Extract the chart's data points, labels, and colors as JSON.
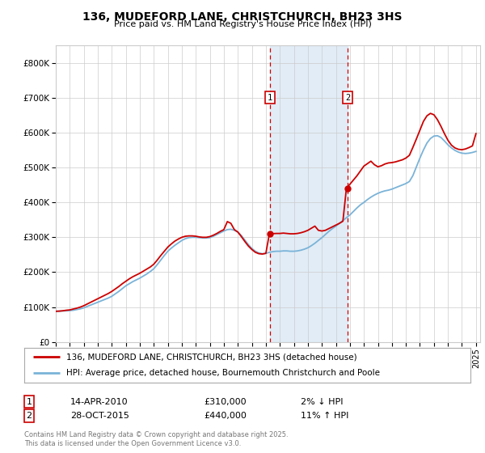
{
  "title": "136, MUDEFORD LANE, CHRISTCHURCH, BH23 3HS",
  "subtitle": "Price paid vs. HM Land Registry's House Price Index (HPI)",
  "background_color": "#ffffff",
  "plot_bg_color": "#ffffff",
  "grid_color": "#cccccc",
  "ylim": [
    0,
    850000
  ],
  "yticks": [
    0,
    100000,
    200000,
    300000,
    400000,
    500000,
    600000,
    700000,
    800000
  ],
  "ytick_labels": [
    "£0",
    "£100K",
    "£200K",
    "£300K",
    "£400K",
    "£500K",
    "£600K",
    "£700K",
    "£800K"
  ],
  "xlim_start": 1995.0,
  "xlim_end": 2025.3,
  "xticks": [
    1995,
    1996,
    1997,
    1998,
    1999,
    2000,
    2001,
    2002,
    2003,
    2004,
    2005,
    2006,
    2007,
    2008,
    2009,
    2010,
    2011,
    2012,
    2013,
    2014,
    2015,
    2016,
    2017,
    2018,
    2019,
    2020,
    2021,
    2022,
    2023,
    2024,
    2025
  ],
  "sale1_x": 2010.29,
  "sale1_y": 310000,
  "sale1_label": "1",
  "sale1_date": "14-APR-2010",
  "sale1_price": "£310,000",
  "sale1_hpi": "2% ↓ HPI",
  "sale2_x": 2015.83,
  "sale2_y": 440000,
  "sale2_label": "2",
  "sale2_date": "28-OCT-2015",
  "sale2_price": "£440,000",
  "sale2_hpi": "11% ↑ HPI",
  "shaded_x1": 2010.29,
  "shaded_x2": 2015.83,
  "hpi_line_color": "#7ab3d8",
  "price_line_color": "#cc0000",
  "legend_label1": "136, MUDEFORD LANE, CHRISTCHURCH, BH23 3HS (detached house)",
  "legend_label2": "HPI: Average price, detached house, Bournemouth Christchurch and Poole",
  "footer": "Contains HM Land Registry data © Crown copyright and database right 2025.\nThis data is licensed under the Open Government Licence v3.0.",
  "hpi_data_x": [
    1995.0,
    1995.25,
    1995.5,
    1995.75,
    1996.0,
    1996.25,
    1996.5,
    1996.75,
    1997.0,
    1997.25,
    1997.5,
    1997.75,
    1998.0,
    1998.25,
    1998.5,
    1998.75,
    1999.0,
    1999.25,
    1999.5,
    1999.75,
    2000.0,
    2000.25,
    2000.5,
    2000.75,
    2001.0,
    2001.25,
    2001.5,
    2001.75,
    2002.0,
    2002.25,
    2002.5,
    2002.75,
    2003.0,
    2003.25,
    2003.5,
    2003.75,
    2004.0,
    2004.25,
    2004.5,
    2004.75,
    2005.0,
    2005.25,
    2005.5,
    2005.75,
    2006.0,
    2006.25,
    2006.5,
    2006.75,
    2007.0,
    2007.25,
    2007.5,
    2007.75,
    2008.0,
    2008.25,
    2008.5,
    2008.75,
    2009.0,
    2009.25,
    2009.5,
    2009.75,
    2010.0,
    2010.25,
    2010.5,
    2010.75,
    2011.0,
    2011.25,
    2011.5,
    2011.75,
    2012.0,
    2012.25,
    2012.5,
    2012.75,
    2013.0,
    2013.25,
    2013.5,
    2013.75,
    2014.0,
    2014.25,
    2014.5,
    2014.75,
    2015.0,
    2015.25,
    2015.5,
    2015.75,
    2016.0,
    2016.25,
    2016.5,
    2016.75,
    2017.0,
    2017.25,
    2017.5,
    2017.75,
    2018.0,
    2018.25,
    2018.5,
    2018.75,
    2019.0,
    2019.25,
    2019.5,
    2019.75,
    2020.0,
    2020.25,
    2020.5,
    2020.75,
    2021.0,
    2021.25,
    2021.5,
    2021.75,
    2022.0,
    2022.25,
    2022.5,
    2022.75,
    2023.0,
    2023.25,
    2023.5,
    2023.75,
    2024.0,
    2024.25,
    2024.5,
    2024.75,
    2025.0
  ],
  "hpi_data_y": [
    88000,
    88500,
    89000,
    89500,
    90000,
    91000,
    93000,
    95000,
    98000,
    102000,
    106000,
    110000,
    114000,
    118000,
    122000,
    126000,
    131000,
    138000,
    145000,
    153000,
    161000,
    167000,
    173000,
    178000,
    183000,
    189000,
    195000,
    202000,
    210000,
    222000,
    235000,
    248000,
    260000,
    269000,
    277000,
    284000,
    291000,
    296000,
    299000,
    300000,
    300000,
    299000,
    298000,
    298000,
    299000,
    303000,
    308000,
    313000,
    318000,
    322000,
    323000,
    320000,
    315000,
    305000,
    292000,
    279000,
    268000,
    260000,
    255000,
    253000,
    254000,
    257000,
    259000,
    260000,
    260000,
    261000,
    261000,
    260000,
    260000,
    261000,
    263000,
    266000,
    270000,
    276000,
    283000,
    291000,
    299000,
    308000,
    317000,
    325000,
    332000,
    340000,
    348000,
    356000,
    364000,
    374000,
    384000,
    393000,
    400000,
    408000,
    415000,
    421000,
    426000,
    430000,
    433000,
    435000,
    438000,
    442000,
    446000,
    450000,
    454000,
    460000,
    477000,
    502000,
    527000,
    550000,
    570000,
    583000,
    590000,
    591000,
    586000,
    576000,
    565000,
    556000,
    549000,
    544000,
    541000,
    540000,
    541000,
    543000,
    546000
  ],
  "price_data_x": [
    1995.0,
    1995.25,
    1995.5,
    1995.75,
    1996.0,
    1996.25,
    1996.5,
    1996.75,
    1997.0,
    1997.25,
    1997.5,
    1997.75,
    1998.0,
    1998.25,
    1998.5,
    1998.75,
    1999.0,
    1999.25,
    1999.5,
    1999.75,
    2000.0,
    2000.25,
    2000.5,
    2000.75,
    2001.0,
    2001.25,
    2001.5,
    2001.75,
    2002.0,
    2002.25,
    2002.5,
    2002.75,
    2003.0,
    2003.25,
    2003.5,
    2003.75,
    2004.0,
    2004.25,
    2004.5,
    2004.75,
    2005.0,
    2005.25,
    2005.5,
    2005.75,
    2006.0,
    2006.25,
    2006.5,
    2006.75,
    2007.0,
    2007.25,
    2007.5,
    2007.75,
    2008.0,
    2008.25,
    2008.5,
    2008.75,
    2009.0,
    2009.25,
    2009.5,
    2009.75,
    2010.0,
    2010.25,
    2010.75,
    2011.0,
    2011.25,
    2011.5,
    2011.75,
    2012.0,
    2012.25,
    2012.5,
    2012.75,
    2013.0,
    2013.25,
    2013.5,
    2013.75,
    2014.0,
    2014.25,
    2014.5,
    2014.75,
    2015.0,
    2015.25,
    2015.5,
    2015.75,
    2016.0,
    2016.25,
    2016.5,
    2016.75,
    2017.0,
    2017.25,
    2017.5,
    2017.75,
    2018.0,
    2018.25,
    2018.5,
    2018.75,
    2019.0,
    2019.25,
    2019.5,
    2019.75,
    2020.0,
    2020.25,
    2020.5,
    2020.75,
    2021.0,
    2021.25,
    2021.5,
    2021.75,
    2022.0,
    2022.25,
    2022.5,
    2022.75,
    2023.0,
    2023.25,
    2023.5,
    2023.75,
    2024.0,
    2024.25,
    2024.5,
    2024.75,
    2025.0
  ],
  "price_data_y": [
    88000,
    88500,
    89500,
    91000,
    92000,
    94500,
    97000,
    100000,
    104000,
    109000,
    114000,
    119000,
    124000,
    129000,
    134000,
    139000,
    145000,
    152000,
    159000,
    167000,
    174000,
    181000,
    187000,
    192000,
    197000,
    203000,
    209000,
    215000,
    223000,
    235000,
    248000,
    260000,
    272000,
    281000,
    289000,
    295000,
    300000,
    303000,
    304000,
    304000,
    303000,
    301000,
    300000,
    300000,
    302000,
    306000,
    311000,
    317000,
    322000,
    345000,
    340000,
    322000,
    315000,
    302000,
    288000,
    275000,
    265000,
    257000,
    253000,
    252000,
    254000,
    310000,
    311000,
    311000,
    312000,
    311000,
    310000,
    310000,
    311000,
    313000,
    316000,
    320000,
    326000,
    332000,
    320000,
    318000,
    320000,
    325000,
    330000,
    335000,
    340000,
    346000,
    440000,
    452000,
    464000,
    476000,
    490000,
    504000,
    511000,
    518000,
    508000,
    502000,
    505000,
    510000,
    513000,
    514000,
    516000,
    519000,
    522000,
    527000,
    535000,
    558000,
    582000,
    607000,
    632000,
    648000,
    655000,
    651000,
    637000,
    618000,
    597000,
    578000,
    564000,
    556000,
    552000,
    551000,
    553000,
    557000,
    562000,
    597000
  ]
}
